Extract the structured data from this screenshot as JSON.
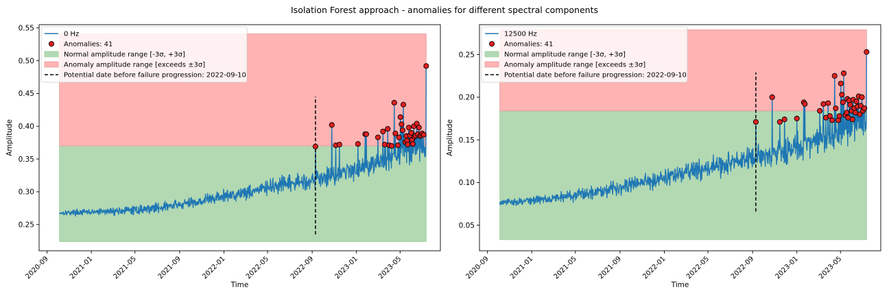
{
  "suptitle": "Isolation Forest approach - anomalies for different spectral components",
  "colors": {
    "line": "#1f77b4",
    "normal_fill": "#b3d9b3",
    "anomaly_fill": "#ffb3b3",
    "marker_fill": "#e02020",
    "marker_edge": "#000000",
    "vline": "#000000"
  },
  "chart_data": [
    {
      "type": "line",
      "xlabel": "Time",
      "ylabel": "Amplitude",
      "xlim": [
        "2020-08-10",
        "2023-08-20"
      ],
      "ylim": [
        0.21,
        0.555
      ],
      "x_ticks": [
        "2020-09",
        "2021-01",
        "2021-05",
        "2021-09",
        "2022-01",
        "2022-05",
        "2022-09",
        "2023-01",
        "2023-05"
      ],
      "y_ticks": [
        0.25,
        0.3,
        0.35,
        0.4,
        0.45,
        0.5,
        0.55
      ],
      "y_tick_labels": [
        "0.25",
        "0.30",
        "0.35",
        "0.40",
        "0.45",
        "0.50",
        "0.55"
      ],
      "legend": {
        "position": "upper left",
        "entries": [
          "0 Hz",
          "Anomalies: 41",
          "Normal amplitude range [-3σ, +3σ]",
          "Anomaly amplitude range [exceeds ±3σ]",
          "Potential date before failure progression: 2022-09-10"
        ]
      },
      "series": [
        {
          "name": "0 Hz",
          "kind": "noisy-trend",
          "date_start": "2020-10-05",
          "date_end": "2023-07-12",
          "trend_dates": [
            "2020-10-05",
            "2021-01-01",
            "2021-05-01",
            "2021-09-01",
            "2022-01-01",
            "2022-05-01",
            "2022-09-01",
            "2023-01-01",
            "2023-05-01",
            "2023-07-12"
          ],
          "trend_values": [
            0.268,
            0.269,
            0.272,
            0.28,
            0.293,
            0.306,
            0.318,
            0.335,
            0.355,
            0.365
          ],
          "noise_start": 0.003,
          "noise_end": 0.015,
          "final_spike": 0.492
        }
      ],
      "normal_range": {
        "x": [
          "2020-10-05",
          "2023-07-12"
        ],
        "y": [
          0.224,
          0.37
        ]
      },
      "anomaly_range": {
        "x": [
          "2020-10-05",
          "2023-07-12"
        ],
        "y": [
          0.37,
          0.541
        ]
      },
      "vline": {
        "date": "2022-09-10",
        "y": [
          0.235,
          0.445
        ],
        "label": "Potential date before failure progression: 2022-09-10"
      },
      "anomalies": {
        "label": "Anomalies: 41",
        "count": 41,
        "points": [
          [
            "2022-09-10",
            0.369
          ],
          [
            "2022-10-25",
            0.402
          ],
          [
            "2022-11-05",
            0.371
          ],
          [
            "2022-11-15",
            0.372
          ],
          [
            "2023-01-05",
            0.373
          ],
          [
            "2023-01-25",
            0.388
          ],
          [
            "2023-01-28",
            0.388
          ],
          [
            "2023-03-01",
            0.383
          ],
          [
            "2023-03-15",
            0.392
          ],
          [
            "2023-03-20",
            0.372
          ],
          [
            "2023-03-28",
            0.396
          ],
          [
            "2023-04-01",
            0.371
          ],
          [
            "2023-04-08",
            0.37
          ],
          [
            "2023-04-15",
            0.436
          ],
          [
            "2023-04-18",
            0.389
          ],
          [
            "2023-04-25",
            0.371
          ],
          [
            "2023-04-28",
            0.383
          ],
          [
            "2023-05-02",
            0.414
          ],
          [
            "2023-05-05",
            0.403
          ],
          [
            "2023-05-08",
            0.394
          ],
          [
            "2023-05-10",
            0.433
          ],
          [
            "2023-05-15",
            0.376
          ],
          [
            "2023-05-18",
            0.385
          ],
          [
            "2023-05-20",
            0.378
          ],
          [
            "2023-05-22",
            0.372
          ],
          [
            "2023-05-25",
            0.398
          ],
          [
            "2023-05-28",
            0.386
          ],
          [
            "2023-06-01",
            0.39
          ],
          [
            "2023-06-03",
            0.379
          ],
          [
            "2023-06-05",
            0.373
          ],
          [
            "2023-06-08",
            0.4
          ],
          [
            "2023-06-10",
            0.384
          ],
          [
            "2023-06-13",
            0.386
          ],
          [
            "2023-06-16",
            0.404
          ],
          [
            "2023-06-19",
            0.388
          ],
          [
            "2023-06-22",
            0.398
          ],
          [
            "2023-06-25",
            0.385
          ],
          [
            "2023-06-28",
            0.386
          ],
          [
            "2023-07-01",
            0.389
          ],
          [
            "2023-07-05",
            0.387
          ],
          [
            "2023-07-12",
            0.492
          ]
        ]
      }
    },
    {
      "type": "line",
      "xlabel": "Time",
      "ylabel": "Amplitude",
      "xlim": [
        "2020-08-10",
        "2023-08-20"
      ],
      "ylim": [
        0.02,
        0.285
      ],
      "x_ticks": [
        "2020-09",
        "2021-01",
        "2021-05",
        "2021-09",
        "2022-01",
        "2022-05",
        "2022-09",
        "2023-01",
        "2023-05"
      ],
      "y_ticks": [
        0.05,
        0.1,
        0.15,
        0.2,
        0.25
      ],
      "y_tick_labels": [
        "0.05",
        "0.10",
        "0.15",
        "0.20",
        "0.25"
      ],
      "legend": {
        "position": "upper left",
        "entries": [
          "12500 Hz",
          "Anomalies: 41",
          "Normal amplitude range [-3σ, +3σ]",
          "Anomaly amplitude range [exceeds ±3σ]",
          "Potential date before failure progression: 2022-09-10"
        ]
      },
      "series": [
        {
          "name": "12500 Hz",
          "kind": "noisy-trend",
          "date_start": "2020-10-05",
          "date_end": "2023-07-12",
          "trend_dates": [
            "2020-10-05",
            "2021-01-01",
            "2021-05-01",
            "2021-09-01",
            "2022-01-01",
            "2022-05-01",
            "2022-09-01",
            "2023-01-01",
            "2023-05-01",
            "2023-07-12"
          ],
          "trend_values": [
            0.076,
            0.079,
            0.085,
            0.095,
            0.106,
            0.117,
            0.128,
            0.141,
            0.158,
            0.168
          ],
          "noise_start": 0.003,
          "noise_end": 0.016,
          "final_spike": 0.253
        }
      ],
      "normal_range": {
        "x": [
          "2020-10-05",
          "2023-07-12"
        ],
        "y": [
          0.033,
          0.184
        ]
      },
      "anomaly_range": {
        "x": [
          "2020-10-05",
          "2023-07-12"
        ],
        "y": [
          0.184,
          0.279
        ]
      },
      "vline": {
        "date": "2022-09-10",
        "y": [
          0.066,
          0.229
        ],
        "label": "Potential date before failure progression: 2022-09-10"
      },
      "anomalies": {
        "label": "Anomalies: 41",
        "count": 41,
        "points": [
          [
            "2022-09-10",
            0.171
          ],
          [
            "2022-10-25",
            0.2
          ],
          [
            "2022-11-15",
            0.171
          ],
          [
            "2022-11-28",
            0.174
          ],
          [
            "2023-01-01",
            0.175
          ],
          [
            "2023-01-20",
            0.194
          ],
          [
            "2023-01-23",
            0.192
          ],
          [
            "2023-03-05",
            0.184
          ],
          [
            "2023-03-15",
            0.192
          ],
          [
            "2023-03-22",
            0.176
          ],
          [
            "2023-03-28",
            0.193
          ],
          [
            "2023-04-02",
            0.178
          ],
          [
            "2023-04-08",
            0.173
          ],
          [
            "2023-04-15",
            0.225
          ],
          [
            "2023-04-18",
            0.187
          ],
          [
            "2023-04-25",
            0.173
          ],
          [
            "2023-04-28",
            0.178
          ],
          [
            "2023-05-02",
            0.216
          ],
          [
            "2023-05-05",
            0.203
          ],
          [
            "2023-05-08",
            0.194
          ],
          [
            "2023-05-10",
            0.228
          ],
          [
            "2023-05-15",
            0.179
          ],
          [
            "2023-05-18",
            0.182
          ],
          [
            "2023-05-20",
            0.198
          ],
          [
            "2023-05-22",
            0.176
          ],
          [
            "2023-05-25",
            0.196
          ],
          [
            "2023-05-28",
            0.191
          ],
          [
            "2023-06-01",
            0.184
          ],
          [
            "2023-06-03",
            0.174
          ],
          [
            "2023-06-05",
            0.197
          ],
          [
            "2023-06-08",
            0.187
          ],
          [
            "2023-06-11",
            0.182
          ],
          [
            "2023-06-14",
            0.195
          ],
          [
            "2023-06-17",
            0.189
          ],
          [
            "2023-06-20",
            0.201
          ],
          [
            "2023-06-23",
            0.18
          ],
          [
            "2023-06-26",
            0.19
          ],
          [
            "2023-06-29",
            0.2
          ],
          [
            "2023-07-02",
            0.184
          ],
          [
            "2023-07-06",
            0.187
          ],
          [
            "2023-07-12",
            0.253
          ]
        ]
      }
    }
  ]
}
